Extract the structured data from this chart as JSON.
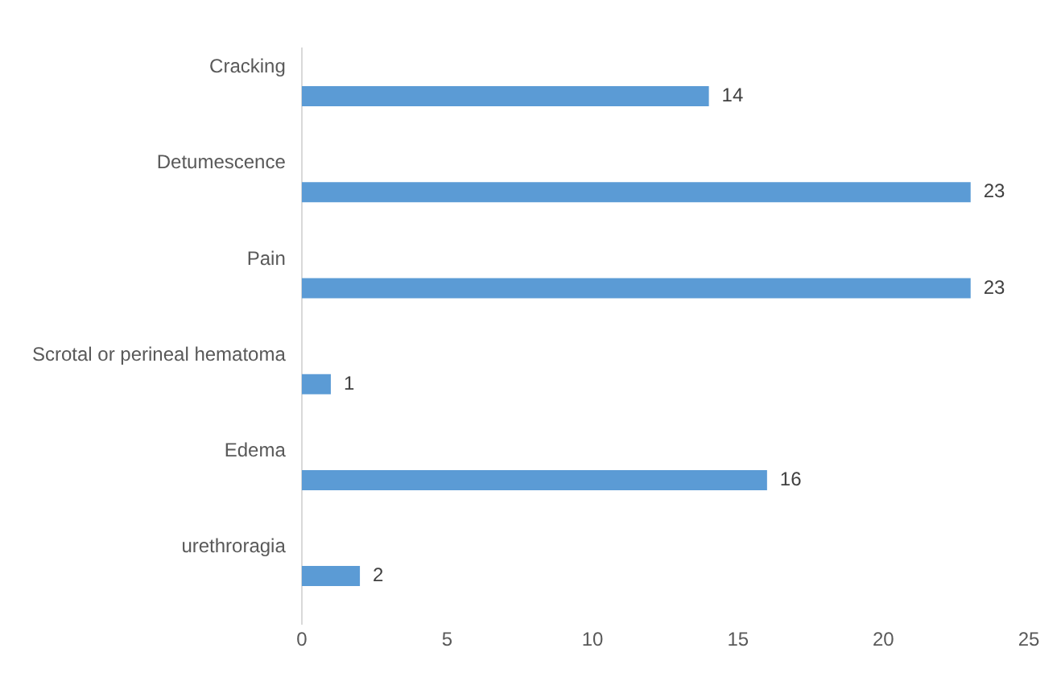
{
  "chart_data": {
    "type": "bar",
    "orientation": "horizontal",
    "categories": [
      "Cracking",
      "Detumescence",
      "Pain",
      "Scrotal or perineal hematoma",
      "Edema",
      "urethroragia"
    ],
    "values": [
      14,
      23,
      23,
      1,
      16,
      2
    ],
    "color": "#5b9bd5",
    "xlim": [
      0,
      25
    ],
    "xticks": [
      0,
      5,
      10,
      15,
      20,
      25
    ],
    "grid": false,
    "legend": false,
    "data_labels": true
  }
}
